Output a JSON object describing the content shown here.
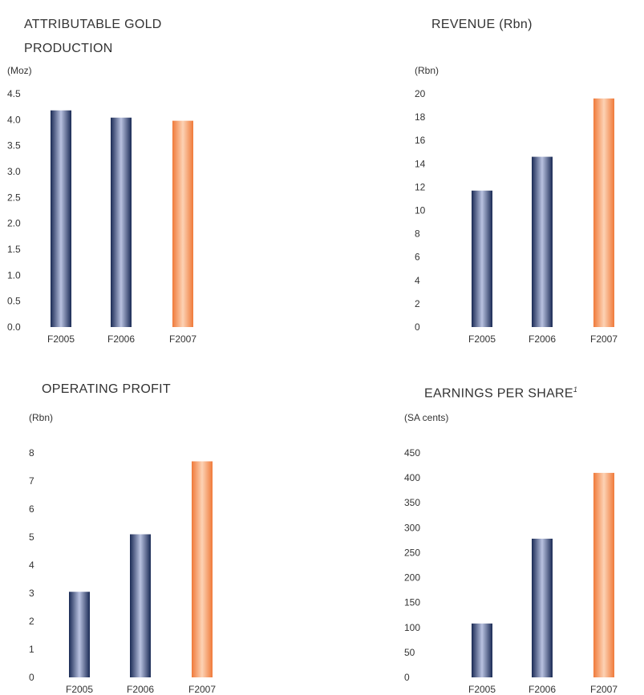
{
  "colors": {
    "navy_dark": "#1a2a55",
    "navy_light": "#b9c2e0",
    "orange_dark": "#f07a3a",
    "orange_light": "#fcd2b4",
    "text": "#333333"
  },
  "chart_data": [
    {
      "type": "bar",
      "title_lines": [
        "ATTRIBUTABLE GOLD",
        "PRODUCTION"
      ],
      "unit_label": "(Moz)",
      "categories": [
        "F2005",
        "F2006",
        "F2007"
      ],
      "values": [
        4.18,
        4.04,
        3.98
      ],
      "ylim": [
        0,
        4.5
      ],
      "yticks": [
        "0.0",
        "0.5",
        "1.0",
        "1.5",
        "2.0",
        "2.5",
        "3.0",
        "3.5",
        "4.0",
        "4.5"
      ],
      "highlight_last": true,
      "grid": false
    },
    {
      "type": "bar",
      "title_lines": [
        "REVENUE (Rbn)"
      ],
      "unit_label": "(Rbn)",
      "categories": [
        "F2005",
        "F2006",
        "F2007"
      ],
      "values": [
        11.7,
        14.6,
        19.6
      ],
      "ylim": [
        0,
        20
      ],
      "yticks": [
        "0",
        "2",
        "4",
        "6",
        "8",
        "10",
        "12",
        "14",
        "16",
        "18",
        "20"
      ],
      "highlight_last": true,
      "grid": false
    },
    {
      "type": "bar",
      "title_lines": [
        "OPERATING PROFIT"
      ],
      "unit_label": "(Rbn)",
      "categories": [
        "F2005",
        "F2006",
        "F2007"
      ],
      "values": [
        3.05,
        5.1,
        7.7
      ],
      "ylim": [
        0,
        8
      ],
      "yticks": [
        "0",
        "1",
        "2",
        "3",
        "4",
        "5",
        "6",
        "7",
        "8"
      ],
      "highlight_last": true,
      "grid": false
    },
    {
      "type": "bar",
      "title_lines": [
        "EARNINGS PER SHARE"
      ],
      "title_footnote": "1",
      "unit_label": "(SA cents)",
      "categories": [
        "F2005",
        "F2006",
        "F2007"
      ],
      "values": [
        108,
        278,
        410
      ],
      "ylim": [
        0,
        450
      ],
      "yticks": [
        "0",
        "50",
        "100",
        "150",
        "200",
        "250",
        "300",
        "350",
        "400",
        "450"
      ],
      "highlight_last": true,
      "grid": false
    }
  ]
}
